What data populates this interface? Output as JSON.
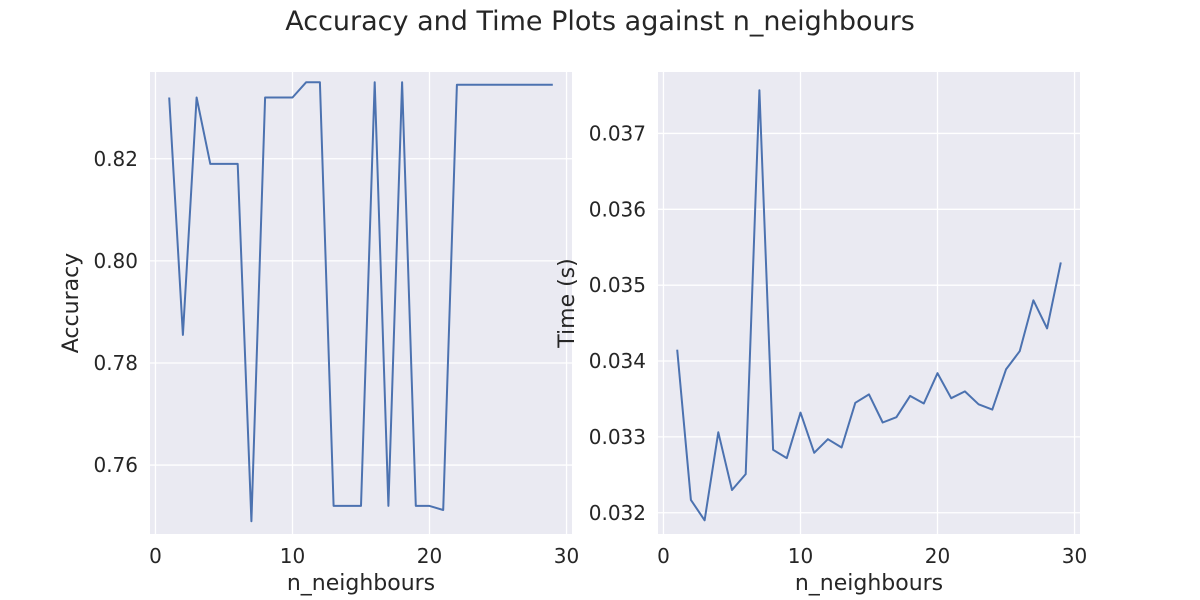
{
  "suptitle": "Accuracy and Time Plots against n_neighbours",
  "colors": {
    "line": "#4c72b0",
    "axes_bg": "#eaeaf2",
    "grid": "#ffffff",
    "text": "#262626"
  },
  "chart_data": [
    {
      "type": "line",
      "title": "",
      "xlabel": "n_neighbours",
      "ylabel": "Accuracy",
      "xlim": [
        -0.4,
        30.4
      ],
      "ylim": [
        0.7465,
        0.837
      ],
      "xticks": [
        0,
        10,
        20,
        30
      ],
      "xtick_labels": [
        "0",
        "10",
        "20",
        "30"
      ],
      "yticks": [
        0.76,
        0.78,
        0.8,
        0.82
      ],
      "ytick_labels": [
        "0.76",
        "0.78",
        "0.80",
        "0.82"
      ],
      "grid": true,
      "series": [
        {
          "x": [
            1,
            2,
            3,
            4,
            5,
            6,
            7,
            8,
            9,
            10,
            11,
            12,
            13,
            14,
            15,
            16,
            17,
            18,
            19,
            20,
            21,
            22,
            23,
            24,
            25,
            26,
            27,
            28,
            29
          ],
          "y": [
            0.832,
            0.7855,
            0.832,
            0.819,
            0.819,
            0.819,
            0.749,
            0.832,
            0.832,
            0.832,
            0.835,
            0.835,
            0.752,
            0.752,
            0.752,
            0.835,
            0.752,
            0.835,
            0.752,
            0.752,
            0.7512,
            0.8345,
            0.8345,
            0.8345,
            0.8345,
            0.8345,
            0.8345,
            0.8345,
            0.8345
          ]
        }
      ]
    },
    {
      "type": "line",
      "title": "",
      "xlabel": "n_neighbours",
      "ylabel": "Time (s)",
      "xlim": [
        -0.4,
        30.4
      ],
      "ylim": [
        0.03172,
        0.03781
      ],
      "xticks": [
        0,
        10,
        20,
        30
      ],
      "xtick_labels": [
        "0",
        "10",
        "20",
        "30"
      ],
      "yticks": [
        0.032,
        0.033,
        0.034,
        0.035,
        0.036,
        0.037
      ],
      "ytick_labels": [
        "0.032",
        "0.033",
        "0.034",
        "0.035",
        "0.036",
        "0.037"
      ],
      "grid": true,
      "series": [
        {
          "x": [
            1,
            2,
            3,
            4,
            5,
            6,
            7,
            8,
            9,
            10,
            11,
            12,
            13,
            14,
            15,
            16,
            17,
            18,
            19,
            20,
            21,
            22,
            23,
            24,
            25,
            26,
            27,
            28,
            29
          ],
          "y": [
            0.03415,
            0.03217,
            0.0319,
            0.03306,
            0.0323,
            0.03251,
            0.03757,
            0.03283,
            0.03272,
            0.03332,
            0.03279,
            0.03297,
            0.03286,
            0.03345,
            0.03356,
            0.03319,
            0.03326,
            0.03354,
            0.03344,
            0.03384,
            0.03351,
            0.0336,
            0.03343,
            0.03336,
            0.03389,
            0.03413,
            0.0348,
            0.03443,
            0.0353
          ]
        }
      ]
    }
  ]
}
